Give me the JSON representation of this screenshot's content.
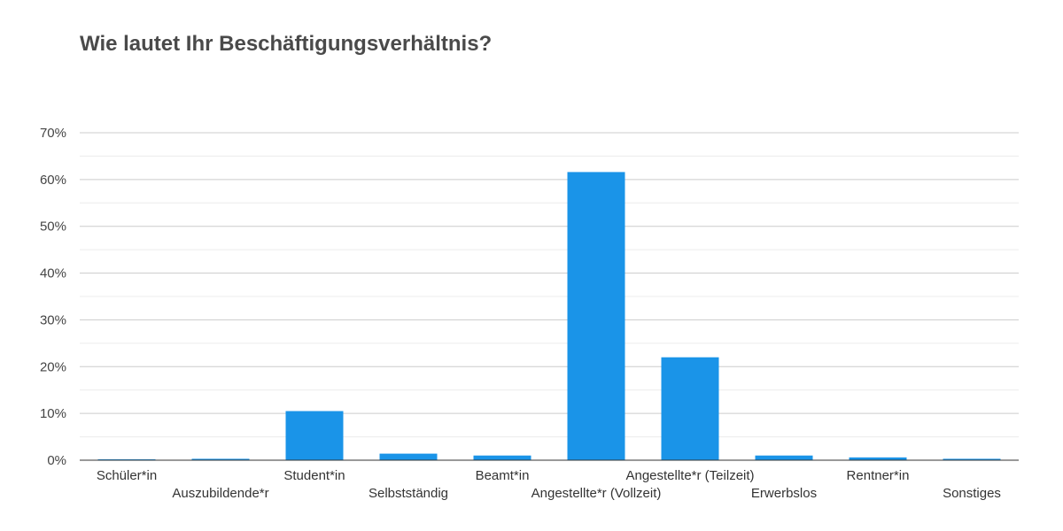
{
  "chart_data": {
    "type": "bar",
    "title": "Wie lautet Ihr Beschäftigungsverhältnis?",
    "categories": [
      "Schüler*in",
      "Auszubildende*r",
      "Student*in",
      "Selbstständig",
      "Beamt*in",
      "Angestellte*r (Vollzeit)",
      "Angestellte*r (Teilzeit)",
      "Erwerbslos",
      "Rentner*in",
      "Sonstiges"
    ],
    "values": [
      0.1,
      0.3,
      10.5,
      1.4,
      1.0,
      61.6,
      22.0,
      1.0,
      0.6,
      0.3
    ],
    "ylim": [
      0,
      70
    ],
    "yticks": [
      "0%",
      "10%",
      "20%",
      "30%",
      "40%",
      "50%",
      "60%",
      "70%"
    ],
    "grid": true,
    "bar_color": "#1a94e8"
  }
}
